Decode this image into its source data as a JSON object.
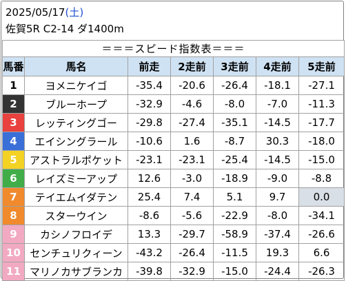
{
  "header": {
    "date": "2025/05/17",
    "dow_open": "(",
    "dow": "土",
    "dow_close": ")",
    "race": "佐賀5R C2-14 ダ1400m"
  },
  "table": {
    "title": "＝＝＝スピード指数表＝＝＝",
    "columns": [
      "馬番",
      "馬名",
      "前走",
      "2走前",
      "3走前",
      "4走前",
      "5走前"
    ],
    "rows": [
      {
        "num": "1",
        "name": "ヨメニケイゴ",
        "vals": [
          "-35.4",
          "-20.6",
          "-26.4",
          "-18.1",
          "-27.1"
        ],
        "bg": "#ffffff",
        "fg": "#000000"
      },
      {
        "num": "2",
        "name": "ブルーホープ",
        "vals": [
          "-32.9",
          "-4.6",
          "-8.0",
          "-7.0",
          "-11.3"
        ],
        "bg": "#333333",
        "fg": "#ffffff"
      },
      {
        "num": "3",
        "name": "レッティングゴー",
        "vals": [
          "-29.8",
          "-27.4",
          "-35.1",
          "-14.5",
          "-17.7"
        ],
        "bg": "#e8413e",
        "fg": "#ffffff"
      },
      {
        "num": "4",
        "name": "エイシングラール",
        "vals": [
          "-10.6",
          "1.6",
          "-8.7",
          "30.3",
          "-18.0"
        ],
        "bg": "#3a6fd8",
        "fg": "#ffffff"
      },
      {
        "num": "5",
        "name": "アストラルポケット",
        "vals": [
          "-23.1",
          "-23.1",
          "-25.4",
          "-14.5",
          "-15.0"
        ],
        "bg": "#f3d224",
        "fg": "#ffffff"
      },
      {
        "num": "6",
        "name": "レイズミーアップ",
        "vals": [
          "12.6",
          "-3.0",
          "-18.9",
          "-9.0",
          "-8.8"
        ],
        "bg": "#41ad49",
        "fg": "#ffffff"
      },
      {
        "num": "7",
        "name": "テイエムイダテン",
        "vals": [
          "25.4",
          "7.4",
          "5.1",
          "9.7",
          "0.0"
        ],
        "bg": "#f08a2c",
        "fg": "#ffffff",
        "hl": 4
      },
      {
        "num": "8",
        "name": "スターウイン",
        "vals": [
          "-8.6",
          "-5.6",
          "-22.9",
          "-8.0",
          "-34.1"
        ],
        "bg": "#f08a2c",
        "fg": "#ffffff"
      },
      {
        "num": "9",
        "name": "カシノフロイデ",
        "vals": [
          "13.3",
          "-29.7",
          "-58.9",
          "-37.4",
          "-26.6"
        ],
        "bg": "#f2a9c2",
        "fg": "#ffffff"
      },
      {
        "num": "10",
        "name": "センチュリクィーン",
        "vals": [
          "-43.2",
          "-26.4",
          "-11.5",
          "19.3",
          "6.6"
        ],
        "bg": "#f2a9c2",
        "fg": "#ffffff"
      },
      {
        "num": "11",
        "name": "マリノカサブランカ",
        "vals": [
          "-39.8",
          "-32.9",
          "-15.0",
          "-24.4",
          "-26.3"
        ],
        "bg": "#f2a9c2",
        "fg": "#ffffff"
      }
    ]
  }
}
